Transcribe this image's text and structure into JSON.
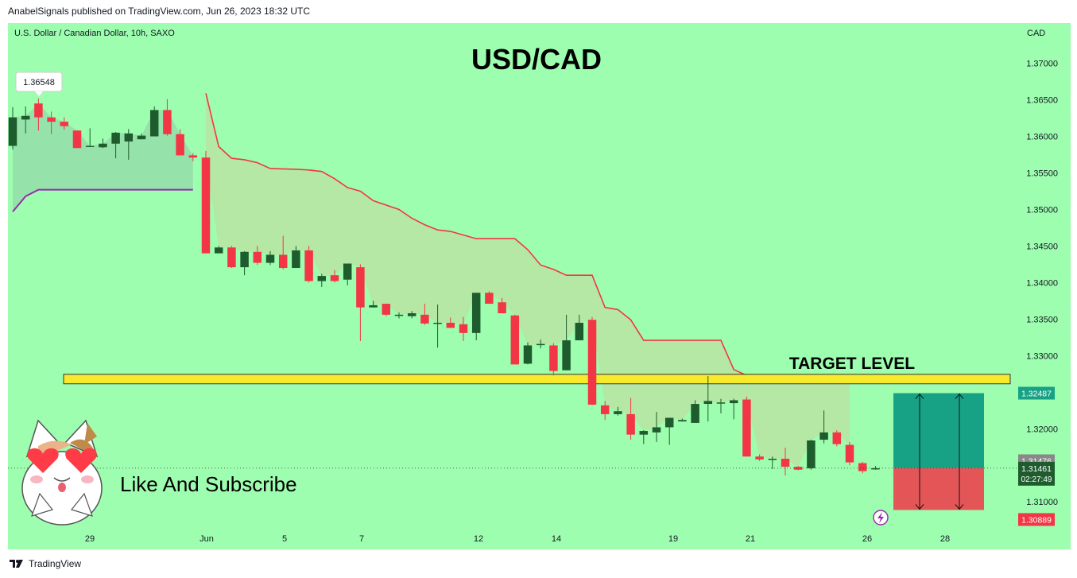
{
  "header": {
    "publisher_line": "AnabelSignals published on TradingView.com, Jun 26, 2023 18:32 UTC"
  },
  "footer": {
    "brand": "TradingView"
  },
  "chart_data": {
    "type": "candlestick",
    "symbol_line": "U.S. Dollar / Canadian Dollar, 10h, SAXO",
    "title": "USD/CAD",
    "currency": "CAD",
    "y_ticks": [
      "1.37000",
      "1.36500",
      "1.36000",
      "1.35500",
      "1.35000",
      "1.34500",
      "1.34000",
      "1.33500",
      "1.33000",
      "1.32000",
      "1.31000"
    ],
    "x_ticks": [
      "29",
      "Jun",
      "5",
      "7",
      "12",
      "14",
      "19",
      "21",
      "26",
      "28"
    ],
    "ylim": [
      1.3035,
      1.3755
    ],
    "colors": {
      "up": "#1e5c2e",
      "down": "#f23645",
      "stop_line": "#f23645",
      "support_line": "#9c27b0",
      "zone": "#f7e92c",
      "target_box": "#17a286",
      "stop_box": "#e35557",
      "background": "#9efeb0"
    },
    "candles": [
      {
        "o": 1.3587,
        "h": 1.364,
        "l": 1.3582,
        "c": 1.3626
      },
      {
        "o": 1.3623,
        "h": 1.3641,
        "l": 1.3604,
        "c": 1.3628
      },
      {
        "o": 1.3645,
        "h": 1.3652,
        "l": 1.3608,
        "c": 1.3626
      },
      {
        "o": 1.3626,
        "h": 1.3634,
        "l": 1.3603,
        "c": 1.362
      },
      {
        "o": 1.362,
        "h": 1.3626,
        "l": 1.3609,
        "c": 1.3614
      },
      {
        "o": 1.3608,
        "h": 1.3608,
        "l": 1.3584,
        "c": 1.3584
      },
      {
        "o": 1.3586,
        "h": 1.3611,
        "l": 1.3586,
        "c": 1.3587
      },
      {
        "o": 1.3585,
        "h": 1.3597,
        "l": 1.3584,
        "c": 1.359
      },
      {
        "o": 1.359,
        "h": 1.3606,
        "l": 1.357,
        "c": 1.3605
      },
      {
        "o": 1.3593,
        "h": 1.361,
        "l": 1.3568,
        "c": 1.3604
      },
      {
        "o": 1.3596,
        "h": 1.3604,
        "l": 1.3596,
        "c": 1.3601
      },
      {
        "o": 1.36,
        "h": 1.3641,
        "l": 1.36,
        "c": 1.3636
      },
      {
        "o": 1.3636,
        "h": 1.3651,
        "l": 1.3601,
        "c": 1.3603
      },
      {
        "o": 1.3603,
        "h": 1.361,
        "l": 1.3574,
        "c": 1.3574
      },
      {
        "o": 1.3574,
        "h": 1.3577,
        "l": 1.3566,
        "c": 1.3571
      },
      {
        "o": 1.3571,
        "h": 1.358,
        "l": 1.344,
        "c": 1.344
      },
      {
        "o": 1.344,
        "h": 1.345,
        "l": 1.344,
        "c": 1.3448
      },
      {
        "o": 1.3448,
        "h": 1.345,
        "l": 1.342,
        "c": 1.3421
      },
      {
        "o": 1.3421,
        "h": 1.3443,
        "l": 1.341,
        "c": 1.3442
      },
      {
        "o": 1.3442,
        "h": 1.345,
        "l": 1.3424,
        "c": 1.3427
      },
      {
        "o": 1.3427,
        "h": 1.3443,
        "l": 1.3424,
        "c": 1.3438
      },
      {
        "o": 1.3438,
        "h": 1.3464,
        "l": 1.3418,
        "c": 1.342
      },
      {
        "o": 1.342,
        "h": 1.345,
        "l": 1.342,
        "c": 1.3444
      },
      {
        "o": 1.3444,
        "h": 1.345,
        "l": 1.34,
        "c": 1.3402
      },
      {
        "o": 1.3402,
        "h": 1.3412,
        "l": 1.3394,
        "c": 1.3409
      },
      {
        "o": 1.341,
        "h": 1.3417,
        "l": 1.34,
        "c": 1.3402
      },
      {
        "o": 1.3404,
        "h": 1.3425,
        "l": 1.3396,
        "c": 1.3426
      },
      {
        "o": 1.3421,
        "h": 1.3425,
        "l": 1.332,
        "c": 1.3366
      },
      {
        "o": 1.3366,
        "h": 1.3375,
        "l": 1.3366,
        "c": 1.3369
      },
      {
        "o": 1.3371,
        "h": 1.3371,
        "l": 1.3354,
        "c": 1.3356
      },
      {
        "o": 1.3356,
        "h": 1.3359,
        "l": 1.3351,
        "c": 1.3356
      },
      {
        "o": 1.3354,
        "h": 1.3361,
        "l": 1.3351,
        "c": 1.3358
      },
      {
        "o": 1.3356,
        "h": 1.3371,
        "l": 1.3342,
        "c": 1.3344
      },
      {
        "o": 1.3345,
        "h": 1.337,
        "l": 1.3311,
        "c": 1.3345
      },
      {
        "o": 1.3345,
        "h": 1.3352,
        "l": 1.3338,
        "c": 1.3338
      },
      {
        "o": 1.3343,
        "h": 1.3353,
        "l": 1.332,
        "c": 1.3331
      },
      {
        "o": 1.3331,
        "h": 1.3386,
        "l": 1.3321,
        "c": 1.3386
      },
      {
        "o": 1.3386,
        "h": 1.3388,
        "l": 1.3371,
        "c": 1.3371
      },
      {
        "o": 1.3373,
        "h": 1.3379,
        "l": 1.3358,
        "c": 1.3358
      },
      {
        "o": 1.3355,
        "h": 1.3356,
        "l": 1.3288,
        "c": 1.3288
      },
      {
        "o": 1.3289,
        "h": 1.3318,
        "l": 1.3288,
        "c": 1.3314
      },
      {
        "o": 1.3316,
        "h": 1.3322,
        "l": 1.331,
        "c": 1.3316
      },
      {
        "o": 1.3314,
        "h": 1.3317,
        "l": 1.3273,
        "c": 1.3279
      },
      {
        "o": 1.328,
        "h": 1.3356,
        "l": 1.328,
        "c": 1.3321
      },
      {
        "o": 1.3321,
        "h": 1.3356,
        "l": 1.3321,
        "c": 1.3345
      },
      {
        "o": 1.3349,
        "h": 1.3353,
        "l": 1.3232,
        "c": 1.3233
      },
      {
        "o": 1.3232,
        "h": 1.3238,
        "l": 1.3212,
        "c": 1.322
      },
      {
        "o": 1.322,
        "h": 1.323,
        "l": 1.3218,
        "c": 1.3224
      },
      {
        "o": 1.322,
        "h": 1.3242,
        "l": 1.3185,
        "c": 1.3192
      },
      {
        "o": 1.3192,
        "h": 1.3198,
        "l": 1.3179,
        "c": 1.3197
      },
      {
        "o": 1.3195,
        "h": 1.3223,
        "l": 1.3182,
        "c": 1.3202
      },
      {
        "o": 1.3202,
        "h": 1.3212,
        "l": 1.3178,
        "c": 1.3215
      },
      {
        "o": 1.321,
        "h": 1.3214,
        "l": 1.321,
        "c": 1.3212
      },
      {
        "o": 1.3208,
        "h": 1.3239,
        "l": 1.3208,
        "c": 1.3234
      },
      {
        "o": 1.3234,
        "h": 1.3272,
        "l": 1.321,
        "c": 1.3238
      },
      {
        "o": 1.3236,
        "h": 1.3241,
        "l": 1.3221,
        "c": 1.3236
      },
      {
        "o": 1.3235,
        "h": 1.3241,
        "l": 1.3213,
        "c": 1.3239
      },
      {
        "o": 1.324,
        "h": 1.3244,
        "l": 1.3162,
        "c": 1.3162
      },
      {
        "o": 1.3162,
        "h": 1.3165,
        "l": 1.3156,
        "c": 1.3158
      },
      {
        "o": 1.3158,
        "h": 1.3162,
        "l": 1.3145,
        "c": 1.3159
      },
      {
        "o": 1.3159,
        "h": 1.3174,
        "l": 1.3136,
        "c": 1.3148
      },
      {
        "o": 1.3148,
        "h": 1.3149,
        "l": 1.3143,
        "c": 1.3144
      },
      {
        "o": 1.3146,
        "h": 1.3185,
        "l": 1.3144,
        "c": 1.3184
      },
      {
        "o": 1.3185,
        "h": 1.3225,
        "l": 1.318,
        "c": 1.3195
      },
      {
        "o": 1.3195,
        "h": 1.3198,
        "l": 1.3176,
        "c": 1.3179
      },
      {
        "o": 1.3178,
        "h": 1.3182,
        "l": 1.315,
        "c": 1.3154
      },
      {
        "o": 1.3153,
        "h": 1.3155,
        "l": 1.3139,
        "c": 1.3142
      },
      {
        "o": 1.3146,
        "h": 1.3149,
        "l": 1.3144,
        "c": 1.3146
      }
    ],
    "stop_line_points": [
      [
        15,
        1.3659
      ],
      [
        16,
        1.3586
      ],
      [
        17,
        1.357
      ],
      [
        18,
        1.3568
      ],
      [
        19,
        1.3564
      ],
      [
        20,
        1.3556
      ],
      [
        22,
        1.3555
      ],
      [
        23,
        1.3554
      ],
      [
        24,
        1.3552
      ],
      [
        25,
        1.3542
      ],
      [
        26,
        1.353
      ],
      [
        27,
        1.3525
      ],
      [
        28,
        1.3512
      ],
      [
        30,
        1.35
      ],
      [
        31,
        1.3488
      ],
      [
        32,
        1.3479
      ],
      [
        33,
        1.3472
      ],
      [
        34,
        1.347
      ],
      [
        36,
        1.346
      ],
      [
        38,
        1.346
      ],
      [
        39,
        1.346
      ],
      [
        40,
        1.3445
      ],
      [
        41,
        1.3424
      ],
      [
        42,
        1.3418
      ],
      [
        43,
        1.341
      ],
      [
        45,
        1.341
      ],
      [
        46,
        1.3366
      ],
      [
        47,
        1.3363
      ],
      [
        48,
        1.3349
      ],
      [
        49,
        1.3321
      ],
      [
        55,
        1.3321
      ],
      [
        56,
        1.3281
      ],
      [
        57,
        1.3273
      ],
      [
        58,
        1.327
      ],
      [
        59,
        1.3268
      ],
      [
        63,
        1.3268
      ],
      [
        64,
        1.3268
      ],
      [
        65,
        1.3262
      ]
    ],
    "support_line_points": [
      [
        0,
        1.3497
      ],
      [
        1,
        1.3518
      ],
      [
        2,
        1.3527
      ],
      [
        14,
        1.3527
      ]
    ],
    "target_zone": {
      "low": 1.32615,
      "high": 1.32745
    },
    "position": {
      "entry": 1.31461,
      "target": 1.32487,
      "stop": 1.30889
    },
    "price_labels": {
      "high": "1.36548",
      "target": "1.32487",
      "line": "1.31476",
      "current": "1.31461",
      "countdown": "02:27:49",
      "stop": "1.30889"
    },
    "annotations": {
      "zone_label": "TARGET LEVEL",
      "promo": "Like And Subscribe"
    }
  }
}
